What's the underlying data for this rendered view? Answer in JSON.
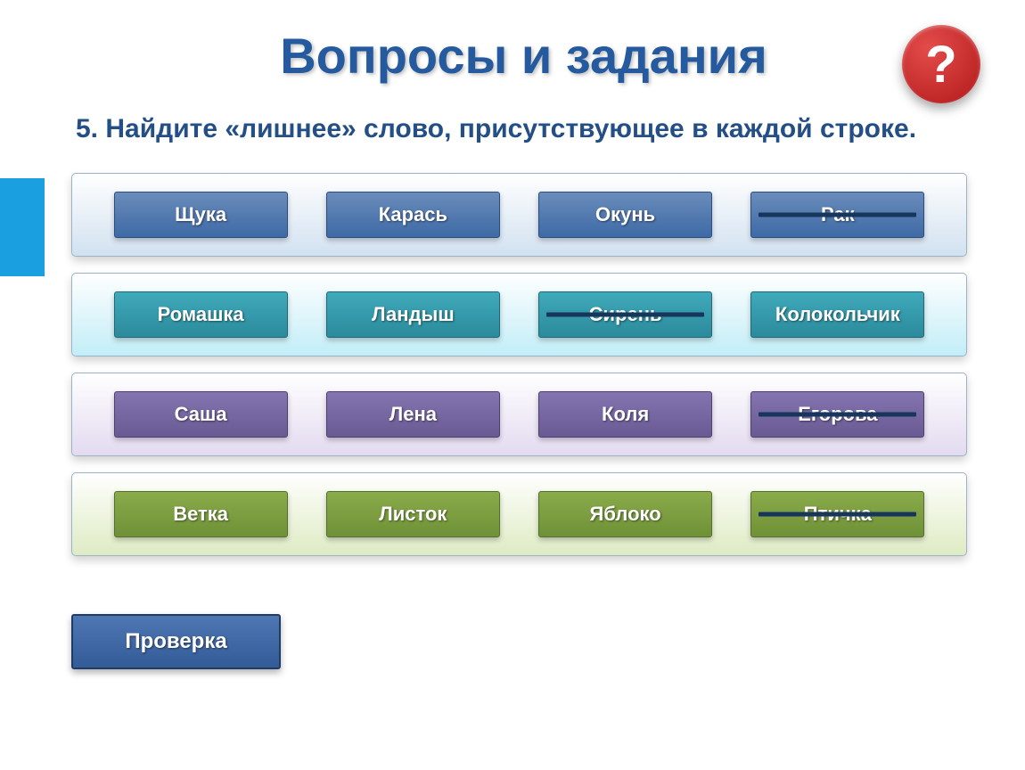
{
  "title": "Вопросы и задания",
  "help_symbol": "?",
  "question": "5. Найдите «лишнее» слово, присутствующее в каждой строке.",
  "check_label": "Проверка",
  "rows": [
    {
      "bg_gradient": [
        "#ffffff",
        "#d2e1f0"
      ],
      "cell_gradient": [
        "#6a8cbb",
        "#3e6aa5"
      ],
      "cell_border": "#2a4e80",
      "words": [
        {
          "text": "Щука",
          "struck": false
        },
        {
          "text": "Карась",
          "struck": false
        },
        {
          "text": "Окунь",
          "struck": false
        },
        {
          "text": "Рак",
          "struck": true
        }
      ]
    },
    {
      "bg_gradient": [
        "#ffffff",
        "#c2edf7"
      ],
      "cell_gradient": [
        "#3faabb",
        "#2b8a9b"
      ],
      "cell_border": "#1e6a79",
      "words": [
        {
          "text": "Ромашка",
          "struck": false
        },
        {
          "text": "Ландыш",
          "struck": false
        },
        {
          "text": "Сирень",
          "struck": true
        },
        {
          "text": "Колокольчик",
          "struck": false
        }
      ]
    },
    {
      "bg_gradient": [
        "#ffffff",
        "#e3daf0"
      ],
      "cell_gradient": [
        "#8474af",
        "#6a5a94"
      ],
      "cell_border": "#4e4172",
      "words": [
        {
          "text": "Саша",
          "struck": false
        },
        {
          "text": "Лена",
          "struck": false
        },
        {
          "text": "Коля",
          "struck": false
        },
        {
          "text": "Егорова",
          "struck": true
        }
      ]
    },
    {
      "bg_gradient": [
        "#ffffff",
        "#deebc3"
      ],
      "cell_gradient": [
        "#8aab4a",
        "#6f9137"
      ],
      "cell_border": "#54702a",
      "words": [
        {
          "text": "Ветка",
          "struck": false
        },
        {
          "text": "Листок",
          "struck": false
        },
        {
          "text": "Яблоко",
          "struck": false
        },
        {
          "text": "Птичка",
          "struck": true
        }
      ]
    }
  ]
}
